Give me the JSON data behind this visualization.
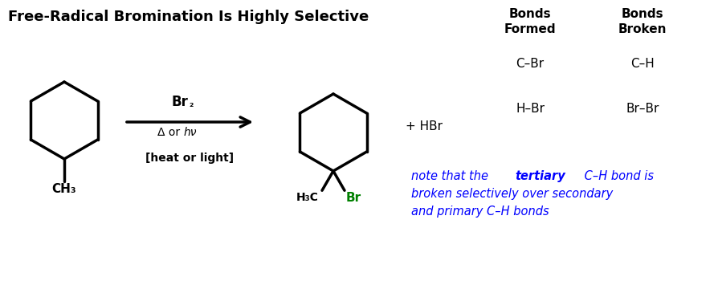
{
  "title": "Free-Radical Bromination Is Highly Selective",
  "title_fontsize": 13,
  "bg_color": "#ffffff",
  "bonds_formed_header": "Bonds\nFormed",
  "bonds_broken_header": "Bonds\nBroken",
  "bonds_formed": [
    "C–Br",
    "H–Br"
  ],
  "bonds_broken": [
    "C–H",
    "Br–Br"
  ],
  "br2_label": "Br₂",
  "condition_label": "Δ or hν",
  "heat_light_label": "[heat or light]",
  "plus_hbr": "+ HBr",
  "ch3_reactant": "CH₃",
  "h3c_product": "H₃C",
  "br_product": "Br",
  "note_color": "#0000ff",
  "green_color": "#008000",
  "black_color": "#000000",
  "figwidth": 8.94,
  "figheight": 3.6,
  "dpi": 100
}
